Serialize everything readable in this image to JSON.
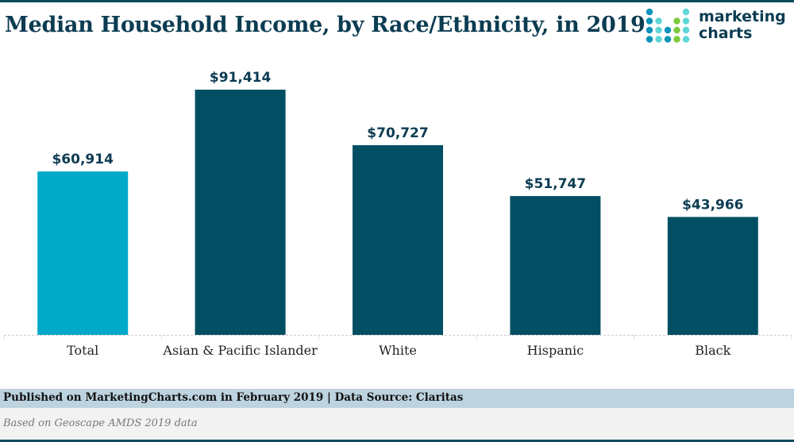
{
  "header": {
    "title": "Median Household Income, by Race/Ethnicity, in 2019",
    "logo": {
      "line1": "marketing",
      "line2": "charts",
      "icon": "marketingcharts-dot-grid-icon"
    }
  },
  "colors": {
    "highlight_bar": "#00a9c8",
    "bar": "#024f63",
    "title": "#0b3c52",
    "footer_band": "#bdd3df",
    "logo_dark": "#0a93b8",
    "logo_light": "#5fd6d6",
    "logo_green": "#7fc93c"
  },
  "chart_data": {
    "type": "bar",
    "title": "Median Household Income, by Race/Ethnicity, in 2019",
    "xlabel": "",
    "ylabel": "",
    "categories": [
      "Total",
      "Asian & Pacific Islander",
      "White",
      "Hispanic",
      "Black"
    ],
    "values": [
      60914,
      91414,
      70727,
      51747,
      43966
    ],
    "data_labels": [
      "$60,914",
      "$91,414",
      "$70,727",
      "$51,747",
      "$43,966"
    ],
    "highlighted_category": "Total",
    "ylim": [
      0,
      91414
    ],
    "grid": false,
    "legend": "none"
  },
  "footer": {
    "published": "Published on MarketingCharts.com in February 2019 | Data Source: Claritas",
    "note": "Based on Geoscape AMDS 2019 data"
  }
}
